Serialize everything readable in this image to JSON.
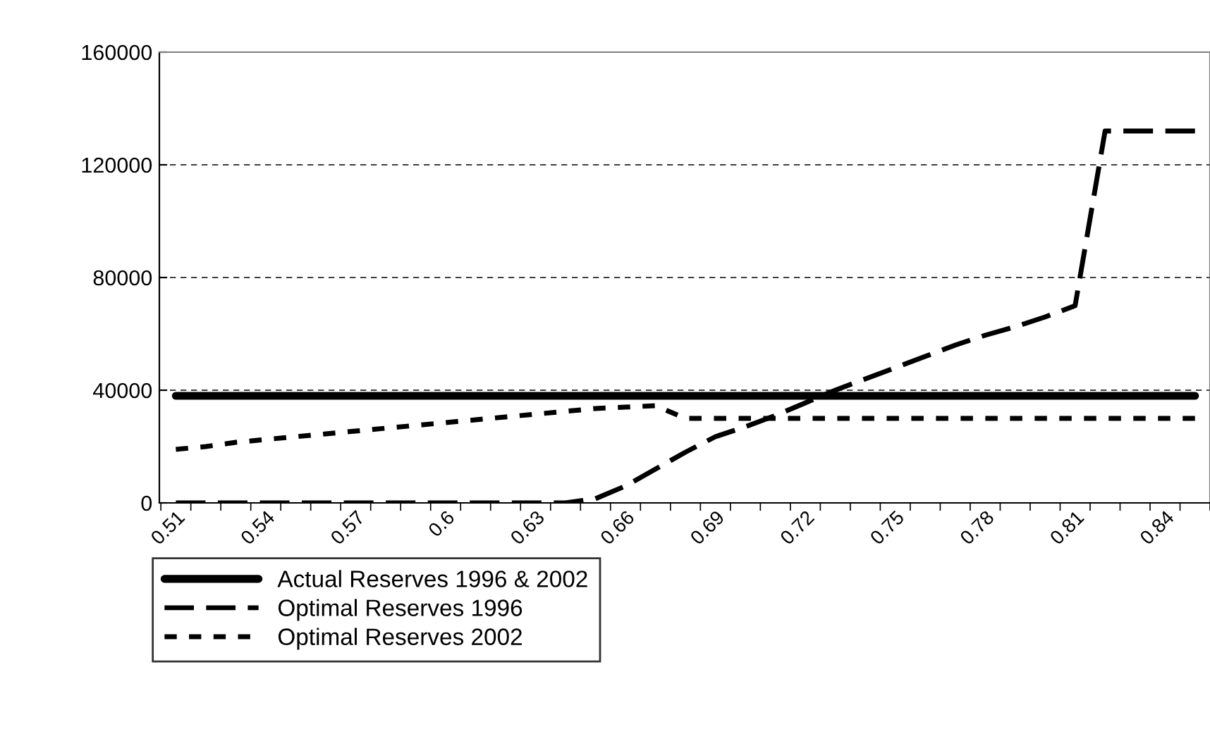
{
  "chart_data": {
    "type": "line",
    "categories": [
      "0.51",
      null,
      null,
      "0.54",
      null,
      null,
      "0.57",
      null,
      null,
      "0.6",
      null,
      null,
      "0.63",
      null,
      null,
      "0.66",
      null,
      null,
      "0.69",
      null,
      null,
      "0.72",
      null,
      null,
      "0.75",
      null,
      null,
      "0.78",
      null,
      null,
      "0.81",
      null,
      null,
      "0.84",
      null
    ],
    "series": [
      {
        "name": "Actual Reserves 1996 & 2002",
        "color": "#000000",
        "line_style": "solid",
        "values": [
          38000,
          38000,
          38000,
          38000,
          38000,
          38000,
          38000,
          38000,
          38000,
          38000,
          38000,
          38000,
          38000,
          38000,
          38000,
          38000,
          38000,
          38000,
          38000,
          38000,
          38000,
          38000,
          38000,
          38000,
          38000,
          38000,
          38000,
          38000,
          38000,
          38000,
          38000,
          38000,
          38000,
          38000,
          38000
        ]
      },
      {
        "name": "Optimal Reserves 1996",
        "color": "#000000",
        "line_style": "dashed",
        "values": [
          0,
          0,
          0,
          0,
          0,
          0,
          0,
          0,
          0,
          0,
          0,
          0,
          0,
          0,
          1500,
          6000,
          12000,
          18000,
          23500,
          27000,
          31000,
          35500,
          40000,
          44000,
          48000,
          52000,
          56000,
          59500,
          62500,
          66000,
          70000,
          132000,
          132000,
          132000,
          132000
        ]
      },
      {
        "name": "Optimal Reserves 2002",
        "color": "#000000",
        "line_style": "dotted",
        "values": [
          19000,
          20000,
          21500,
          22500,
          23500,
          24500,
          25500,
          26500,
          27500,
          28500,
          29500,
          30500,
          31500,
          32500,
          33500,
          34000,
          34500,
          30000,
          30000,
          30000,
          30000,
          30000,
          30000,
          30000,
          30000,
          30000,
          30000,
          30000,
          30000,
          30000,
          30000,
          30000,
          30000,
          30000,
          30000
        ]
      }
    ],
    "ylim": [
      0,
      160000
    ],
    "yticks": [
      0,
      40000,
      80000,
      120000,
      160000
    ],
    "grid": "y",
    "legend": "bottom",
    "marker": "none"
  }
}
